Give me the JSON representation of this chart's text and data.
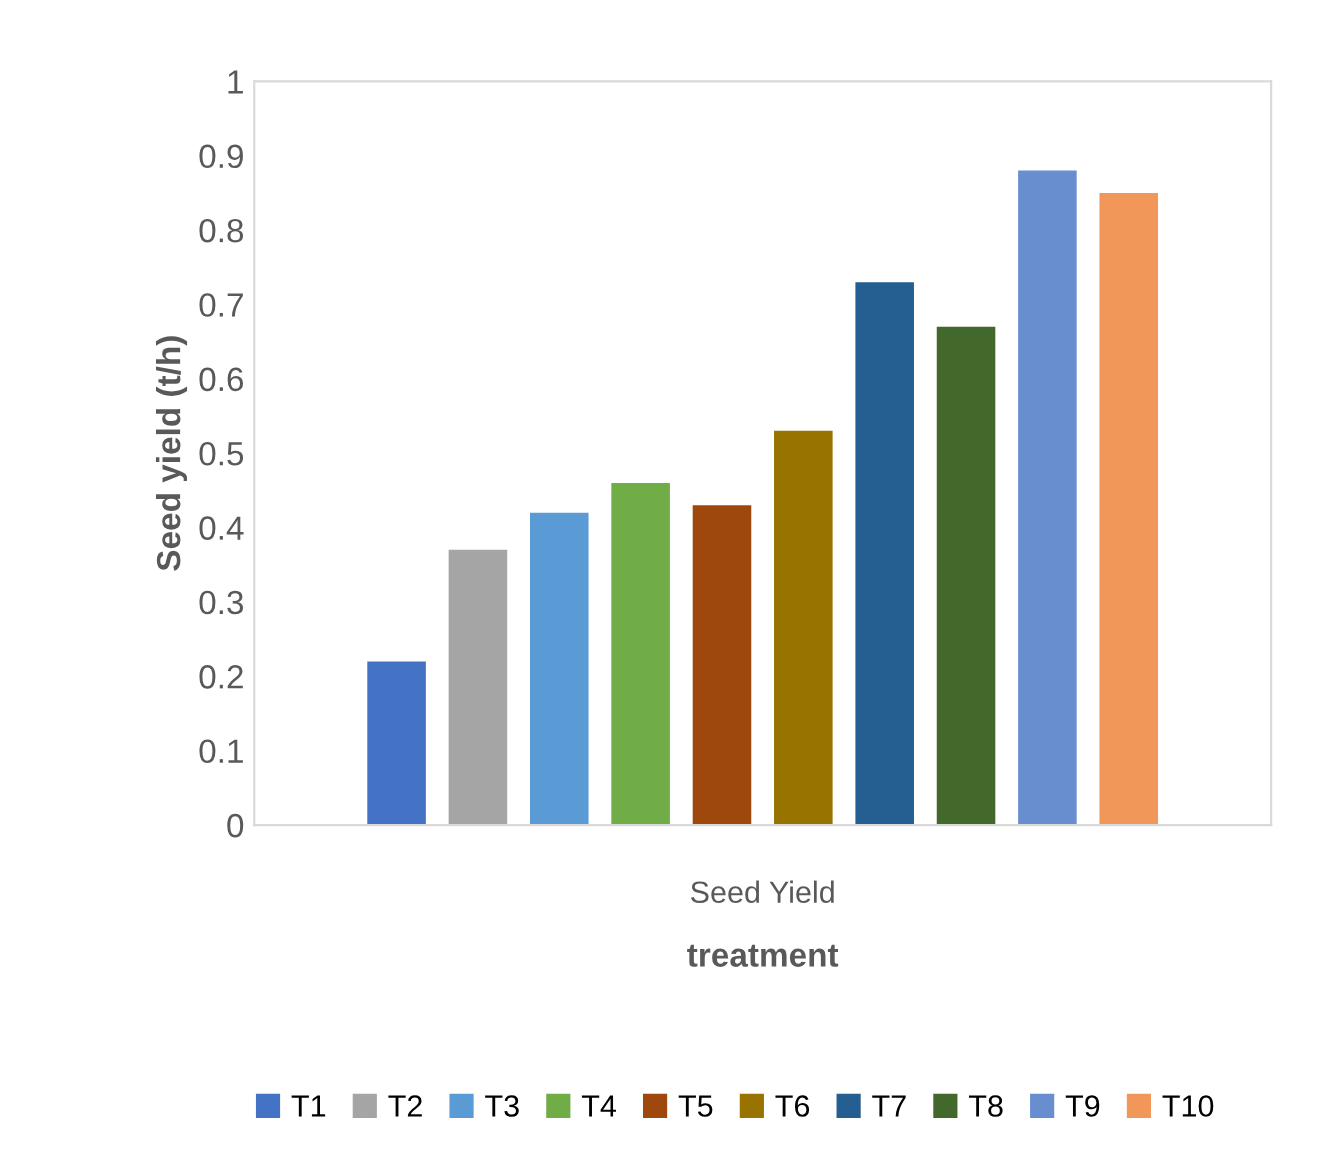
{
  "chart_data": {
    "type": "bar",
    "xlabel": "treatment",
    "ylabel": "Seed yield (t/h)",
    "categories": [
      "Seed Yield"
    ],
    "series": [
      {
        "name": "T1",
        "color": "#4472c4",
        "values": [
          0.22
        ]
      },
      {
        "name": "T2",
        "color": "#a5a5a5",
        "values": [
          0.37
        ]
      },
      {
        "name": "T3",
        "color": "#5b9bd5",
        "values": [
          0.42
        ]
      },
      {
        "name": "T4",
        "color": "#70ad47",
        "values": [
          0.46
        ]
      },
      {
        "name": "T5",
        "color": "#9e480e",
        "values": [
          0.43
        ]
      },
      {
        "name": "T6",
        "color": "#997300",
        "values": [
          0.53
        ]
      },
      {
        "name": "T7",
        "color": "#255e91",
        "values": [
          0.73
        ]
      },
      {
        "name": "T8",
        "color": "#43682b",
        "values": [
          0.67
        ]
      },
      {
        "name": "T9",
        "color": "#698ed0",
        "values": [
          0.88
        ]
      },
      {
        "name": "T10",
        "color": "#f1975a",
        "values": [
          0.85
        ]
      }
    ],
    "ylim": [
      0,
      1
    ],
    "yticks": [
      0,
      0.1,
      0.2,
      0.3,
      0.4,
      0.5,
      0.6,
      0.7,
      0.8,
      0.9,
      1
    ],
    "grid": false,
    "legend": "bottom"
  }
}
